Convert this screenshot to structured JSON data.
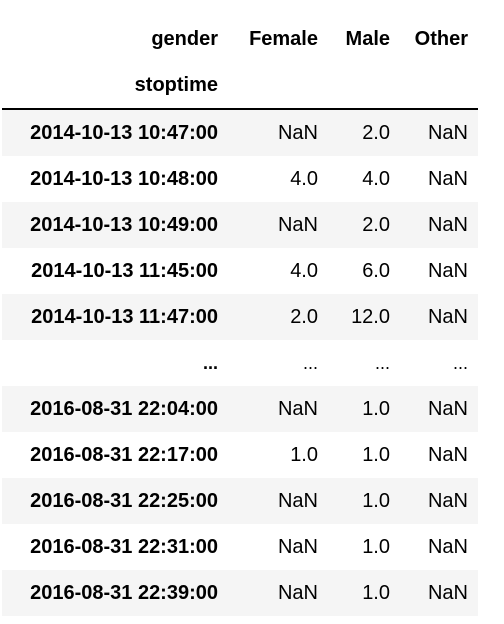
{
  "table": {
    "columns_name": "gender",
    "index_name": "stoptime",
    "columns": [
      "Female",
      "Male",
      "Other"
    ],
    "rows": [
      {
        "index": "2014-10-13 10:47:00",
        "values": [
          "NaN",
          "2.0",
          "NaN"
        ]
      },
      {
        "index": "2014-10-13 10:48:00",
        "values": [
          "4.0",
          "4.0",
          "NaN"
        ]
      },
      {
        "index": "2014-10-13 10:49:00",
        "values": [
          "NaN",
          "2.0",
          "NaN"
        ]
      },
      {
        "index": "2014-10-13 11:45:00",
        "values": [
          "4.0",
          "6.0",
          "NaN"
        ]
      },
      {
        "index": "2014-10-13 11:47:00",
        "values": [
          "2.0",
          "12.0",
          "NaN"
        ]
      },
      {
        "index": "...",
        "values": [
          "...",
          "...",
          "..."
        ]
      },
      {
        "index": "2016-08-31 22:04:00",
        "values": [
          "NaN",
          "1.0",
          "NaN"
        ]
      },
      {
        "index": "2016-08-31 22:17:00",
        "values": [
          "1.0",
          "1.0",
          "NaN"
        ]
      },
      {
        "index": "2016-08-31 22:25:00",
        "values": [
          "NaN",
          "1.0",
          "NaN"
        ]
      },
      {
        "index": "2016-08-31 22:31:00",
        "values": [
          "NaN",
          "1.0",
          "NaN"
        ]
      },
      {
        "index": "2016-08-31 22:39:00",
        "values": [
          "NaN",
          "1.0",
          "NaN"
        ]
      }
    ]
  }
}
